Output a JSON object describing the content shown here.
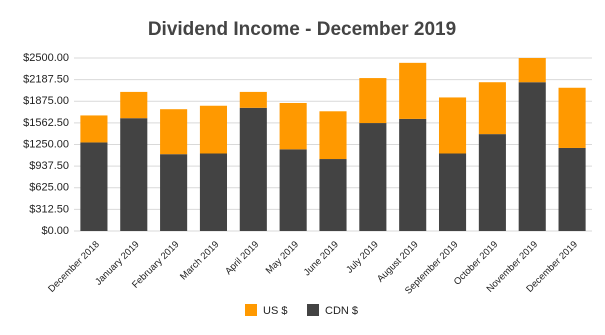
{
  "chart_data": {
    "type": "stacked-bar",
    "title": "Dividend Income - December 2019",
    "categories": [
      "December 2018",
      "January 2019",
      "February 2019",
      "March 2019",
      "April 2019",
      "May 2019",
      "June 2019",
      "July 2019",
      "August 2019",
      "September 2019",
      "October 2019",
      "November 2019",
      "December 2019"
    ],
    "series": [
      {
        "name": "US $",
        "color": "#ff9900",
        "values": [
          390,
          380,
          650,
          690,
          230,
          670,
          690,
          650,
          810,
          810,
          750,
          350,
          870
        ]
      },
      {
        "name": "CDN $",
        "color": "#434343",
        "values": [
          1280,
          1630,
          1110,
          1120,
          1780,
          1180,
          1040,
          1560,
          1620,
          1120,
          1400,
          2150,
          1200
        ]
      }
    ],
    "stack_order_bottom_up": [
      "CDN $",
      "US $"
    ],
    "ylim": [
      0,
      2500
    ],
    "yticks": [
      {
        "value": 0,
        "label": "$0.00"
      },
      {
        "value": 312.5,
        "label": "$312.50"
      },
      {
        "value": 625,
        "label": "$625.00"
      },
      {
        "value": 937.5,
        "label": "$937.50"
      },
      {
        "value": 1250,
        "label": "$1250.00"
      },
      {
        "value": 1562.5,
        "label": "$1562.50"
      },
      {
        "value": 1875,
        "label": "$1875.00"
      },
      {
        "value": 2187.5,
        "label": "$2187.50"
      },
      {
        "value": 2500,
        "label": "$2500.00"
      }
    ],
    "grid": true,
    "legend": "bottom"
  }
}
